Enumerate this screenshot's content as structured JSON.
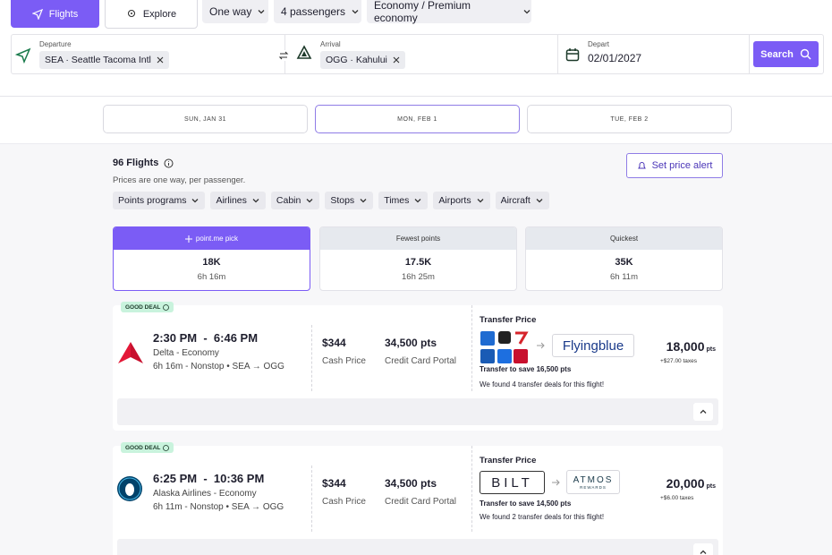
{
  "tabs": [
    "Flights",
    "Explore"
  ],
  "options": [
    "One way",
    "4 passengers",
    "Economy / Premium economy"
  ],
  "search": {
    "departure_label": "Departure",
    "departure_value": "SEA · Seattle Tacoma Intl",
    "arrival_label": "Arrival",
    "arrival_value": "OGG · Kahului",
    "depart_label": "Depart",
    "depart_value": "02/01/2027",
    "button": "Search"
  },
  "dates": [
    "SUN, JAN 31",
    "MON, FEB 1",
    "TUE, FEB 2"
  ],
  "results": {
    "count": "96 Flights",
    "note": "Prices are one way, per passenger.",
    "alert": "Set price alert"
  },
  "filters": [
    "Points programs",
    "Airlines",
    "Cabin",
    "Stops",
    "Times",
    "Airports",
    "Aircraft"
  ],
  "sort": [
    {
      "label": "point.me pick",
      "points": "18K",
      "duration": "6h 16m"
    },
    {
      "label": "Fewest points",
      "points": "17.5K",
      "duration": "16h 25m"
    },
    {
      "label": "Quickest",
      "points": "35K",
      "duration": "6h 11m"
    }
  ],
  "flights": [
    {
      "badge": "GOOD DEAL",
      "time": "2:30 PM  -  6:46 PM",
      "airline": "Delta - Economy",
      "details": "6h 16m - Nonstop • SEA → OGG",
      "cash": "$344",
      "cash_label": "Cash Price",
      "points": "34,500 pts",
      "points_label": "Credit Card Portal",
      "transfer_title": "Transfer Price",
      "partner": "Flyingblue",
      "save": "Transfer to save 16,500 pts",
      "award": "18,000",
      "award_unit": "pts",
      "taxes": "+$27.00 taxes",
      "found": "We found 4 transfer deals for this flight!"
    },
    {
      "badge": "GOOD DEAL",
      "time": "6:25 PM  -  10:36 PM",
      "airline": "Alaska Airlines - Economy",
      "details": "6h 11m - Nonstop • SEA → OGG",
      "cash": "$344",
      "cash_label": "Cash Price",
      "points": "34,500 pts",
      "points_label": "Credit Card Portal",
      "transfer_title": "Transfer Price",
      "source": "BILT",
      "partner": "ATMOS",
      "partner_sub": "REWARDS",
      "save": "Transfer to save 14,500 pts",
      "award": "20,000",
      "award_unit": "pts",
      "taxes": "+$6.00 taxes",
      "found": "We found 2 transfer deals for this flight!"
    }
  ]
}
